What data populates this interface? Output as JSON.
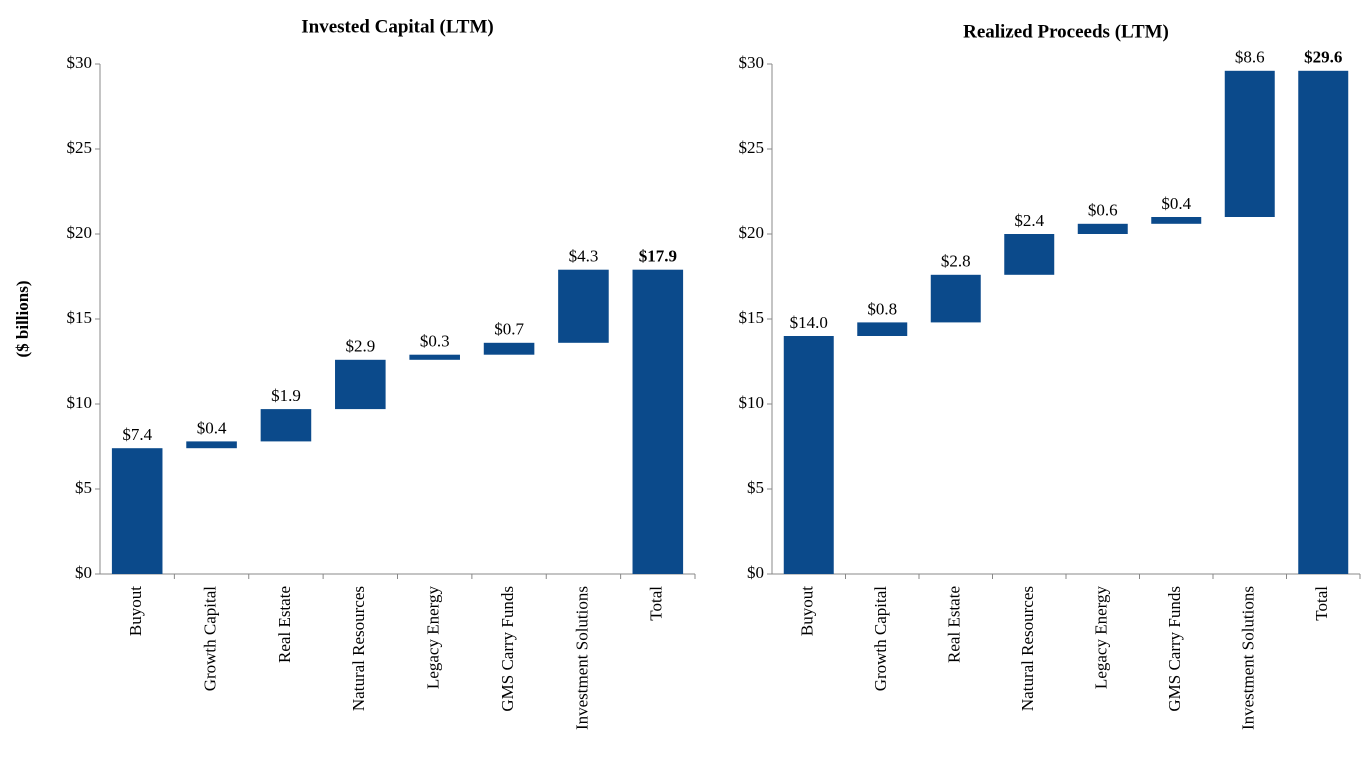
{
  "chart_data": [
    {
      "type": "waterfall",
      "title": "Invested Capital (LTM)",
      "ylabel": "($ billions)",
      "categories": [
        "Buyout",
        "Growth Capital",
        "Real Estate",
        "Natural Resources",
        "Legacy Energy",
        "GMS Carry Funds",
        "Investment Solutions",
        "Total"
      ],
      "values": [
        7.4,
        0.4,
        1.9,
        2.9,
        0.3,
        0.7,
        4.3,
        17.9
      ],
      "value_labels": [
        "$7.4",
        "$0.4",
        "$1.9",
        "$2.9",
        "$0.3",
        "$0.7",
        "$4.3",
        "$17.9"
      ],
      "measure": [
        "relative",
        "relative",
        "relative",
        "relative",
        "relative",
        "relative",
        "relative",
        "total"
      ],
      "color": "#0b4a8b",
      "ylim": [
        0,
        30
      ],
      "yticks": [
        {
          "value": 0,
          "label": "$0"
        },
        {
          "value": 5,
          "label": "$5"
        },
        {
          "value": 10,
          "label": "$10"
        },
        {
          "value": 15,
          "label": "$15"
        },
        {
          "value": 20,
          "label": "$20"
        },
        {
          "value": 25,
          "label": "$25"
        },
        {
          "value": 30,
          "label": "$30"
        }
      ]
    },
    {
      "type": "waterfall",
      "title": "Realized Proceeds (LTM)",
      "categories": [
        "Buyout",
        "Growth Capital",
        "Real Estate",
        "Natural Resources",
        "Legacy Energy",
        "GMS Carry Funds",
        "Investment Solutions",
        "Total"
      ],
      "values": [
        14.0,
        0.8,
        2.8,
        2.4,
        0.6,
        0.4,
        8.6,
        29.6
      ],
      "value_labels": [
        "$14.0",
        "$0.8",
        "$2.8",
        "$2.4",
        "$0.6",
        "$0.4",
        "$8.6",
        "$29.6"
      ],
      "measure": [
        "relative",
        "relative",
        "relative",
        "relative",
        "relative",
        "relative",
        "relative",
        "total"
      ],
      "color": "#0b4a8b",
      "ylim": [
        0,
        30
      ],
      "yticks": [
        {
          "value": 0,
          "label": "$0"
        },
        {
          "value": 5,
          "label": "$5"
        },
        {
          "value": 10,
          "label": "$10"
        },
        {
          "value": 15,
          "label": "$15"
        },
        {
          "value": 20,
          "label": "$20"
        },
        {
          "value": 25,
          "label": "$25"
        },
        {
          "value": 30,
          "label": "$30"
        }
      ]
    }
  ]
}
